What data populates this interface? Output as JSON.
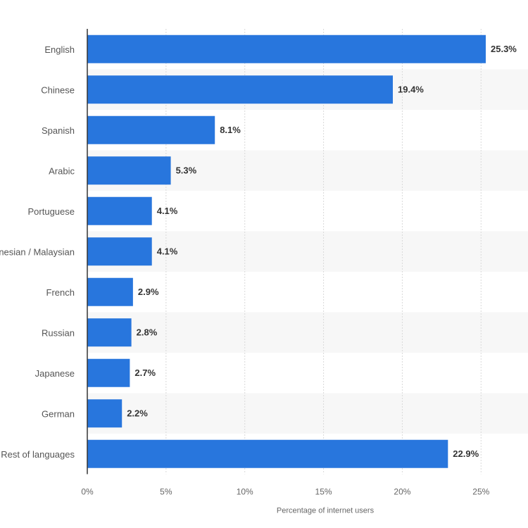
{
  "chart_data": {
    "type": "bar",
    "orientation": "horizontal",
    "categories": [
      "English",
      "Chinese",
      "Spanish",
      "Arabic",
      "Portuguese",
      "Indonesian / Malaysian",
      "French",
      "Russian",
      "Japanese",
      "German",
      "Rest of languages"
    ],
    "series": [
      {
        "values": [
          25.3,
          19.4,
          8.1,
          5.3,
          4.1,
          4.1,
          2.9,
          2.8,
          2.7,
          2.2,
          22.9
        ],
        "color": "#2876dd"
      }
    ],
    "value_labels": [
      "25.3%",
      "19.4%",
      "8.1%",
      "5.3%",
      "4.1%",
      "4.1%",
      "2.9%",
      "2.8%",
      "2.7%",
      "2.2%",
      "22.9%"
    ],
    "x_ticks": [
      "0%",
      "5%",
      "10%",
      "15%",
      "20%",
      "25%"
    ],
    "xlabel": "Percentage of internet users",
    "ylabel": "",
    "xlim": [
      0,
      25.3
    ],
    "grid": true,
    "band_color": "#f7f7f7",
    "legend": "none"
  }
}
